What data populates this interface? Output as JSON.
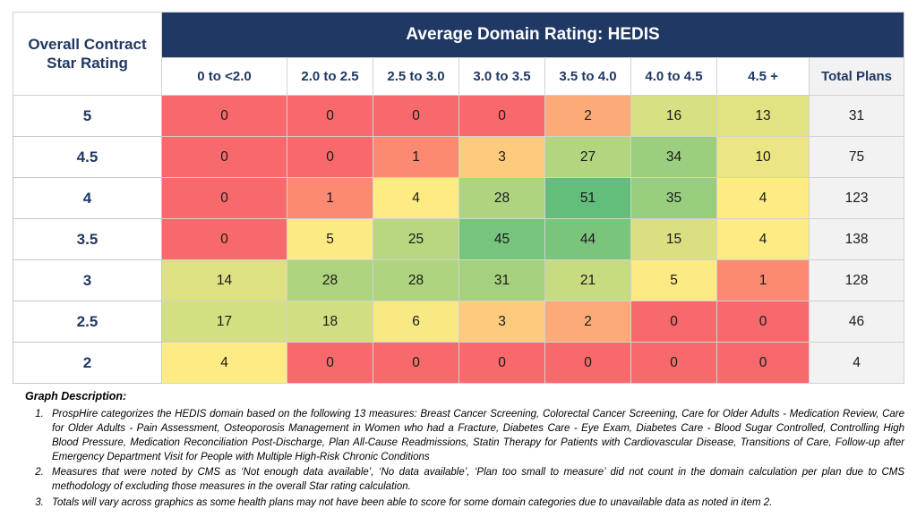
{
  "colors": {
    "navy": "#1F3864",
    "title_text": "#FFFFFF",
    "label_text": "#1F3864",
    "total_bg": "#F2F2F2",
    "grid_border": "#D2D2D2",
    "cell_text": "#1A1A1A"
  },
  "chart_data": {
    "type": "heatmap",
    "title": "Average Domain Rating: HEDIS",
    "row_header": "Overall Contract Star Rating",
    "columns": [
      "0 to <2.0",
      "2.0 to 2.5",
      "2.5 to 3.0",
      "3.0 to 3.5",
      "3.5 to 4.0",
      "4.0 to 4.5",
      "4.5 +"
    ],
    "total_label": "Total Plans",
    "rows": [
      "5",
      "4.5",
      "4",
      "3.5",
      "3",
      "2.5",
      "2"
    ],
    "values": [
      [
        0,
        0,
        0,
        0,
        2,
        16,
        13
      ],
      [
        0,
        0,
        1,
        3,
        27,
        34,
        10
      ],
      [
        0,
        1,
        4,
        28,
        51,
        35,
        4
      ],
      [
        0,
        5,
        25,
        45,
        44,
        15,
        4
      ],
      [
        14,
        28,
        28,
        31,
        21,
        5,
        1
      ],
      [
        17,
        18,
        6,
        3,
        2,
        0,
        0
      ],
      [
        4,
        0,
        0,
        0,
        0,
        0,
        0
      ]
    ],
    "totals": [
      31,
      75,
      123,
      138,
      128,
      46,
      4
    ],
    "color_scale": {
      "min_value": 0,
      "mid_value": 4,
      "max_value": 51,
      "min_color": "#F8696B",
      "mid_color": "#FFEB84",
      "max_color": "#63BE7B"
    }
  },
  "notes": {
    "heading": "Graph Description:",
    "items": [
      "ProspHire categorizes the HEDIS domain based on the following 13 measures: Breast Cancer Screening, Colorectal Cancer Screening, Care for Older Adults - Medication Review, Care for Older Adults - Pain Assessment, Osteoporosis Management in Women who had a Fracture, Diabetes Care - Eye Exam, Diabetes Care - Blood Sugar Controlled, Controlling High Blood Pressure, Medication Reconciliation Post-Discharge, Plan All-Cause Readmissions, Statin Therapy for Patients with Cardiovascular Disease, Transitions of Care, Follow-up after Emergency Department Visit for People with Multiple High-Risk Chronic Conditions",
      "Measures that were noted by CMS as ‘Not enough data available’, ‘No data available’, ‘Plan too small to measure’ did not count in the domain calculation per plan due to CMS methodology of excluding those measures in the overall Star rating calculation.",
      "Totals will vary across graphics as some health plans may not have been able to score for some domain categories due to unavailable data as noted in item 2."
    ]
  }
}
